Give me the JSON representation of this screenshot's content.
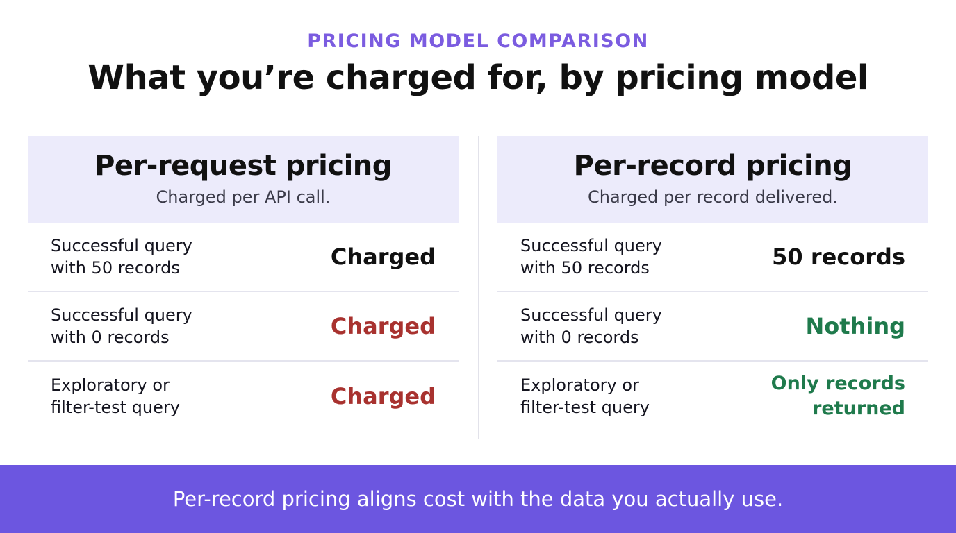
{
  "header": {
    "eyebrow": "PRICING MODEL COMPARISON",
    "title": "What you’re charged for, by pricing model"
  },
  "columns": [
    {
      "heading": "Per-request pricing",
      "subheading": "Charged per API call.",
      "rows": [
        {
          "label": "Successful query with 50 records",
          "result": "Charged",
          "color": "#111111"
        },
        {
          "label": "Successful query with 0 records",
          "result": "Charged",
          "color": "#a8322f"
        },
        {
          "label": "Exploratory or filter-test query",
          "result": "Charged",
          "color": "#a8322f"
        }
      ]
    },
    {
      "heading": "Per-record pricing",
      "subheading": "Charged per record delivered.",
      "rows": [
        {
          "label": "Successful query with 50 records",
          "result": "50 records",
          "color": "#111111"
        },
        {
          "label": "Successful query with 0 records",
          "result": "Nothing",
          "color": "#1f7a4c"
        },
        {
          "label": "Exploratory or filter-test query",
          "result": "Only records returned",
          "color": "#1f7a4c"
        }
      ]
    }
  ],
  "footer": {
    "text": "Per-record pricing aligns cost with the data you actually use."
  }
}
